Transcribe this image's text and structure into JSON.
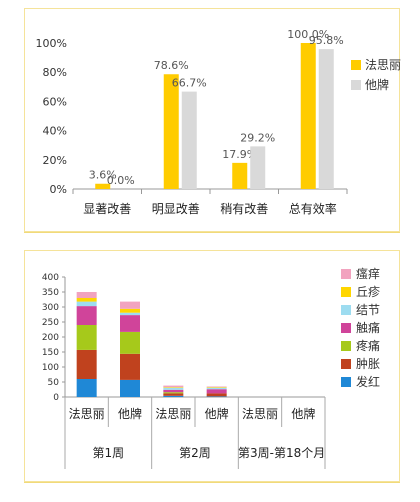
{
  "chart_data": [
    {
      "type": "bar",
      "categories": [
        "显著改善",
        "明显改善",
        "稍有改善",
        "总有效率"
      ],
      "series": [
        {
          "name": "法思丽",
          "color": "#ffcc00",
          "values": [
            3.6,
            78.6,
            17.9,
            100.0
          ],
          "labels": [
            "3.6%",
            "78.6%",
            "17.9%",
            "100.0%"
          ]
        },
        {
          "name": "他牌",
          "color": "#d9d9d9",
          "values": [
            0.0,
            66.7,
            29.2,
            95.8
          ],
          "labels": [
            "0.0%",
            "66.7%",
            "29.2%",
            "95.8%"
          ]
        }
      ],
      "ylim": [
        0,
        100
      ],
      "yticks": [
        "0%",
        "20%",
        "40%",
        "60%",
        "80%",
        "100%"
      ],
      "ytick_values": [
        0,
        20,
        40,
        60,
        80,
        100
      ],
      "grid": false,
      "legend_position": "right"
    },
    {
      "type": "bar",
      "stacked": true,
      "categories": [
        "法思丽",
        "他牌",
        "法思丽",
        "他牌",
        "法思丽",
        "他牌"
      ],
      "groups": [
        "第1周",
        "第2周",
        "第3周-第18个月"
      ],
      "series": [
        {
          "name": "发红",
          "color": "#1f88d6",
          "values": [
            60,
            57,
            4,
            2,
            0,
            0
          ]
        },
        {
          "name": "肿胀",
          "color": "#c0421e",
          "values": [
            97,
            87,
            8,
            10,
            0,
            0
          ]
        },
        {
          "name": "疼痛",
          "color": "#a6c91b",
          "values": [
            83,
            73,
            4,
            0,
            0,
            0
          ]
        },
        {
          "name": "触痛",
          "color": "#d0449a",
          "values": [
            63,
            56,
            8,
            14,
            0,
            0
          ]
        },
        {
          "name": "结节",
          "color": "#9ddcf0",
          "values": [
            15,
            8,
            7,
            5,
            0,
            0
          ]
        },
        {
          "name": "丘疹",
          "color": "#ffd600",
          "values": [
            12,
            13,
            2,
            2,
            0,
            0
          ]
        },
        {
          "name": "瘙痒",
          "color": "#f2a3bf",
          "values": [
            20,
            24,
            5,
            2,
            0,
            0
          ]
        }
      ],
      "ylim": [
        0,
        400
      ],
      "yticks": [
        "0",
        "50",
        "100",
        "150",
        "200",
        "250",
        "300",
        "350",
        "400"
      ],
      "ytick_values": [
        0,
        50,
        100,
        150,
        200,
        250,
        300,
        350,
        400
      ],
      "grid": false,
      "legend_position": "right"
    }
  ]
}
